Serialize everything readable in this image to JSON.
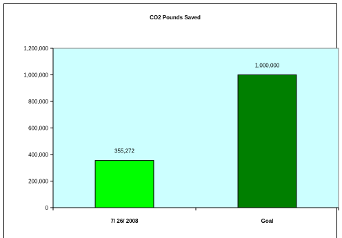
{
  "chart_data": {
    "type": "bar",
    "title": "CO2 Pounds Saved",
    "categories": [
      "7/ 26/ 2008",
      "Goal"
    ],
    "values": [
      355272,
      1000000
    ],
    "data_labels": [
      "355,272",
      "1,000,000"
    ],
    "bar_colors": [
      "#00ff00",
      "#007f00"
    ],
    "plot_background": "#ccffff",
    "ylim": [
      0,
      1200000
    ],
    "yticks": [
      0,
      200000,
      400000,
      600000,
      800000,
      1000000,
      1200000
    ],
    "ytick_labels": [
      "0",
      "200,000",
      "400,000",
      "600,000",
      "800,000",
      "1,000,000",
      "1,200,000"
    ],
    "grid": false,
    "legend": "none",
    "xlabel": "",
    "ylabel": ""
  }
}
